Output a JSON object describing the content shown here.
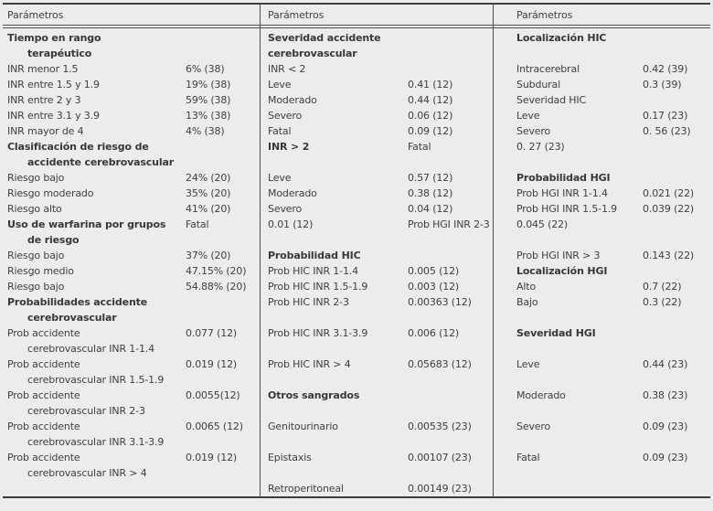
{
  "colors": {
    "background": "#ececec",
    "text": "#3f3f3f",
    "rule": "#4e4e4e"
  },
  "table": {
    "headers": [
      "Parámetros",
      "Parámetros",
      "Parámetros"
    ],
    "rows": [
      [
        {
          "lines": [
            "Tiempo en rango",
            "terapéutico"
          ],
          "bold": true,
          "indent": true,
          "value": ""
        },
        {
          "lines": [
            "Severidad accidente",
            "cerebrovascular"
          ],
          "bold": true,
          "indent": false,
          "value": ""
        },
        {
          "lines": [
            "Localización HIC"
          ],
          "bold": true,
          "value": ""
        }
      ],
      [
        {
          "lines": [
            "INR menor 1.5"
          ],
          "value": "6% (38)"
        },
        {
          "lines": [
            "INR < 2"
          ],
          "value": ""
        },
        {
          "lines": [
            "Intracerebral"
          ],
          "value": "0.42 (39)"
        }
      ],
      [
        {
          "lines": [
            "INR entre 1.5 y 1.9"
          ],
          "value": "19% (38)"
        },
        {
          "lines": [
            "Leve"
          ],
          "value": "0.41 (12)"
        },
        {
          "lines": [
            "Subdural"
          ],
          "value": "0.3 (39)"
        }
      ],
      [
        {
          "lines": [
            "INR entre 2 y 3"
          ],
          "value": "59% (38)"
        },
        {
          "lines": [
            "Moderado"
          ],
          "value": "0.44 (12)"
        },
        {
          "lines": [
            "Severidad HIC"
          ],
          "value": ""
        }
      ],
      [
        {
          "lines": [
            "INR entre 3.1 y 3.9"
          ],
          "value": "13% (38)"
        },
        {
          "lines": [
            "Severo"
          ],
          "value": "0.06 (12)"
        },
        {
          "lines": [
            "Leve"
          ],
          "value": "0.17 (23)"
        }
      ],
      [
        {
          "lines": [
            "INR mayor de 4"
          ],
          "value": "4% (38)"
        },
        {
          "lines": [
            "Fatal"
          ],
          "value": "0.09 (12)"
        },
        {
          "lines": [
            "Severo"
          ],
          "value": "0. 56 (23)"
        }
      ],
      [
        {
          "lines": [
            "Clasificación de riesgo de",
            "accidente cerebrovascular"
          ],
          "bold": true,
          "indent": true,
          "value": ""
        },
        {
          "lines": [
            "INR > 2"
          ],
          "bold": true,
          "value": "Fatal"
        },
        {
          "lines": [
            "0. 27 (23)"
          ],
          "value": ""
        }
      ],
      [
        {
          "lines": [
            "Riesgo bajo"
          ],
          "value": "24% (20)"
        },
        {
          "lines": [
            "Leve"
          ],
          "value": "0.57 (12)"
        },
        {
          "lines": [
            "Probabilidad HGI"
          ],
          "bold": true,
          "value": ""
        }
      ],
      [
        {
          "lines": [
            "Riesgo moderado"
          ],
          "value": "35% (20)"
        },
        {
          "lines": [
            "Moderado"
          ],
          "value": "0.38 (12)"
        },
        {
          "lines": [
            "Prob HGI INR 1-1.4"
          ],
          "value": "0.021 (22)"
        }
      ],
      [
        {
          "lines": [
            "Riesgo alto"
          ],
          "value": "41% (20)"
        },
        {
          "lines": [
            "Severo"
          ],
          "value": "0.04 (12)"
        },
        {
          "lines": [
            "Prob HGI INR 1.5-1.9"
          ],
          "value": "0.039 (22)"
        }
      ],
      [
        {
          "lines": [
            "Uso de warfarina por grupos",
            "de riesgo"
          ],
          "bold": true,
          "indent": true,
          "value": "Fatal"
        },
        {
          "lines": [
            "0.01 (12)"
          ],
          "value": "Prob HGI INR 2-3"
        },
        {
          "lines": [
            "0.045 (22)"
          ],
          "value": ""
        }
      ],
      [
        {
          "lines": [
            "Riesgo bajo"
          ],
          "value": "37% (20)"
        },
        {
          "lines": [
            "Probabilidad HIC"
          ],
          "bold": true,
          "value": ""
        },
        {
          "lines": [
            "Prob HGI INR > 3"
          ],
          "value": "0.143 (22)"
        }
      ],
      [
        {
          "lines": [
            "Riesgo medio"
          ],
          "value": "47.15% (20)"
        },
        {
          "lines": [
            "Prob HIC INR 1-1.4"
          ],
          "value": "0.005 (12)"
        },
        {
          "lines": [
            "Localización HGI"
          ],
          "bold": true,
          "value": ""
        }
      ],
      [
        {
          "lines": [
            "Riesgo bajo"
          ],
          "value": "54.88% (20)"
        },
        {
          "lines": [
            "Prob HIC INR 1.5-1.9"
          ],
          "value": "0.003 (12)"
        },
        {
          "lines": [
            "Alto"
          ],
          "value": "0.7 (22)"
        }
      ],
      [
        {
          "lines": [
            "Probabilidades accidente",
            "cerebrovascular"
          ],
          "bold": true,
          "indent": true,
          "value": ""
        },
        {
          "lines": [
            "Prob HIC INR 2-3"
          ],
          "value": "0.00363 (12)"
        },
        {
          "lines": [
            "Bajo"
          ],
          "value": "0.3 (22)"
        }
      ],
      [
        {
          "lines": [
            "Prob accidente",
            "cerebrovascular INR 1-1.4"
          ],
          "indent": true,
          "value": "0.077 (12)"
        },
        {
          "lines": [
            "Prob HIC INR 3.1-3.9"
          ],
          "value": "0.006 (12)"
        },
        {
          "lines": [
            "Severidad HGI"
          ],
          "bold": true,
          "value": ""
        }
      ],
      [
        {
          "lines": [
            "Prob accidente",
            "cerebrovascular INR 1.5-1.9"
          ],
          "indent": true,
          "value": "0.019 (12)"
        },
        {
          "lines": [
            "Prob HIC INR > 4"
          ],
          "value": "0.05683 (12)"
        },
        {
          "lines": [
            "Leve"
          ],
          "value": "0.44 (23)"
        }
      ],
      [
        {
          "lines": [
            "Prob accidente",
            "cerebrovascular INR 2-3"
          ],
          "indent": true,
          "value": "0.0055(12)"
        },
        {
          "lines": [
            "Otros sangrados"
          ],
          "bold": true,
          "value": ""
        },
        {
          "lines": [
            "Moderado"
          ],
          "value": "0.38 (23)"
        }
      ],
      [
        {
          "lines": [
            "Prob accidente",
            "cerebrovascular INR 3.1-3.9"
          ],
          "indent": true,
          "value": "0.0065 (12)"
        },
        {
          "lines": [
            "Genitourinario"
          ],
          "value": "0.00535 (23)"
        },
        {
          "lines": [
            "Severo"
          ],
          "value": "0.09 (23)"
        }
      ],
      [
        {
          "lines": [
            "Prob accidente",
            "cerebrovascular INR > 4"
          ],
          "indent": true,
          "value": "0.019 (12)"
        },
        {
          "lines": [
            "Epistaxis"
          ],
          "value": "0.00107 (23)"
        },
        {
          "lines": [
            "Fatal"
          ],
          "value": "0.09 (23)"
        }
      ],
      [
        {
          "lines": [],
          "value": ""
        },
        {
          "lines": [
            "Retroperitoneal"
          ],
          "value": "0.00149 (23)"
        },
        {
          "lines": [],
          "value": ""
        }
      ]
    ]
  }
}
